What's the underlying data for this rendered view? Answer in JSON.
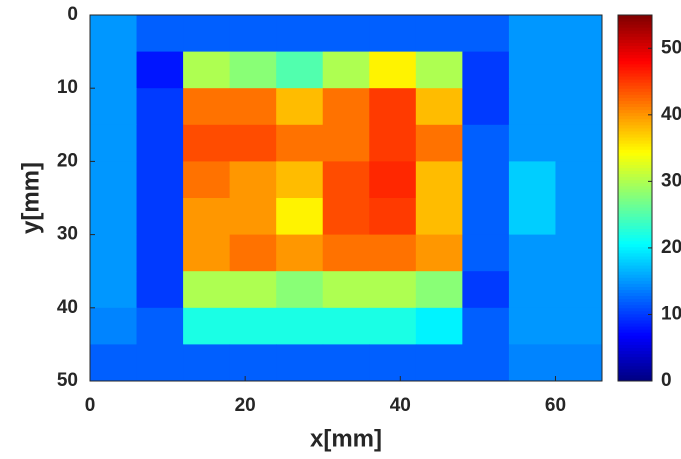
{
  "chart_data": {
    "type": "heatmap",
    "colormap": "jet",
    "xlabel": "x[mm]",
    "ylabel": "y[mm]",
    "x_edges": [
      0,
      6,
      12,
      18,
      24,
      30,
      36,
      42,
      48,
      54,
      60,
      66
    ],
    "y_edges": [
      0,
      5,
      10,
      15,
      20,
      25,
      30,
      35,
      40,
      45,
      50
    ],
    "z": [
      [
        15,
        12,
        12,
        12,
        12,
        12,
        12,
        12,
        12,
        15,
        15
      ],
      [
        15,
        8,
        30,
        28,
        25,
        30,
        35,
        30,
        10,
        15,
        15
      ],
      [
        15,
        10,
        42,
        42,
        38,
        42,
        45,
        38,
        10,
        15,
        15
      ],
      [
        15,
        10,
        44,
        44,
        42,
        42,
        45,
        42,
        12,
        15,
        15
      ],
      [
        15,
        10,
        42,
        40,
        38,
        44,
        46,
        38,
        12,
        18,
        15
      ],
      [
        15,
        10,
        40,
        40,
        35,
        44,
        45,
        38,
        12,
        18,
        15
      ],
      [
        15,
        10,
        40,
        42,
        40,
        42,
        42,
        40,
        12,
        15,
        15
      ],
      [
        15,
        10,
        30,
        30,
        28,
        30,
        30,
        28,
        10,
        15,
        15
      ],
      [
        14,
        12,
        22,
        22,
        22,
        22,
        22,
        20,
        12,
        15,
        15
      ],
      [
        12,
        12,
        12,
        12,
        12,
        12,
        12,
        12,
        12,
        14,
        14
      ]
    ],
    "xlim": [
      0,
      66
    ],
    "xticks": [
      0,
      20,
      40,
      60
    ],
    "ylim": [
      0,
      50
    ],
    "yticks": [
      0,
      10,
      20,
      30,
      40,
      50
    ],
    "y_reversed": true,
    "clim": [
      0,
      55
    ],
    "cticks": [
      0,
      10,
      20,
      30,
      40,
      50
    ]
  }
}
